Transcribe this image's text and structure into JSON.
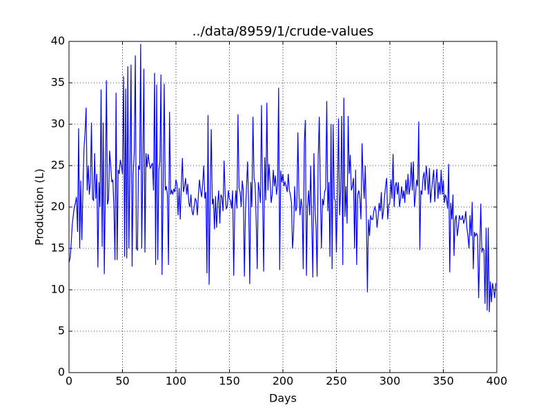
{
  "chart_data": {
    "type": "line",
    "title": "../data/8959/1/crude-values",
    "xlabel": "Days",
    "ylabel": "Production (L)",
    "color": "#0000ff",
    "grid": true,
    "xlim": [
      0,
      400
    ],
    "xticks": [
      0,
      50,
      100,
      150,
      200,
      250,
      300,
      350,
      400
    ],
    "ylim": [
      0,
      40
    ],
    "yticks": [
      0,
      5,
      10,
      15,
      20,
      25,
      30,
      35,
      40
    ],
    "x": [
      0,
      1,
      2,
      3,
      4,
      5,
      6,
      7,
      8,
      9,
      10,
      11,
      12,
      13,
      14,
      15,
      16,
      17,
      18,
      19,
      20,
      21,
      22,
      23,
      24,
      25,
      26,
      27,
      28,
      29,
      30,
      31,
      32,
      33,
      34,
      35,
      36,
      37,
      38,
      39,
      40,
      41,
      42,
      43,
      44,
      45,
      46,
      47,
      48,
      49,
      50,
      51,
      52,
      53,
      54,
      55,
      56,
      57,
      58,
      59,
      60,
      61,
      62,
      63,
      64,
      65,
      66,
      67,
      68,
      69,
      70,
      71,
      72,
      73,
      74,
      75,
      76,
      77,
      78,
      79,
      80,
      81,
      82,
      83,
      84,
      85,
      86,
      87,
      88,
      89,
      90,
      91,
      92,
      93,
      94,
      95,
      96,
      97,
      98,
      99,
      100,
      101,
      102,
      103,
      104,
      105,
      106,
      107,
      108,
      109,
      110,
      111,
      112,
      113,
      114,
      115,
      116,
      117,
      118,
      119,
      120,
      121,
      122,
      123,
      124,
      125,
      126,
      127,
      128,
      129,
      130,
      131,
      132,
      133,
      134,
      135,
      136,
      137,
      138,
      139,
      140,
      141,
      142,
      143,
      144,
      145,
      146,
      147,
      148,
      149,
      150,
      151,
      152,
      153,
      154,
      155,
      156,
      157,
      158,
      159,
      160,
      161,
      162,
      163,
      164,
      165,
      166,
      167,
      168,
      169,
      170,
      171,
      172,
      173,
      174,
      175,
      176,
      177,
      178,
      179,
      180,
      181,
      182,
      183,
      184,
      185,
      186,
      187,
      188,
      189,
      190,
      191,
      192,
      193,
      194,
      195,
      196,
      197,
      198,
      199,
      200,
      201,
      202,
      203,
      204,
      205,
      206,
      207,
      208,
      209,
      210,
      211,
      212,
      213,
      214,
      215,
      216,
      217,
      218,
      219,
      220,
      221,
      222,
      223,
      224,
      225,
      226,
      227,
      228,
      229,
      230,
      231,
      232,
      233,
      234,
      235,
      236,
      237,
      238,
      239,
      240,
      241,
      242,
      243,
      244,
      245,
      246,
      247,
      248,
      249,
      250,
      251,
      252,
      253,
      254,
      255,
      256,
      257,
      258,
      259,
      260,
      261,
      262,
      263,
      264,
      265,
      266,
      267,
      268,
      269,
      270,
      271,
      272,
      273,
      274,
      275,
      276,
      277,
      278,
      279,
      280,
      281,
      282,
      283,
      284,
      285,
      286,
      287,
      288,
      289,
      290,
      291,
      292,
      293,
      294,
      295,
      296,
      297,
      298,
      299,
      300,
      301,
      302,
      303,
      304,
      305,
      306,
      307,
      308,
      309,
      310,
      311,
      312,
      313,
      314,
      315,
      316,
      317,
      318,
      319,
      320,
      321,
      322,
      323,
      324,
      325,
      326,
      327,
      328,
      329,
      330,
      331,
      332,
      333,
      334,
      335,
      336,
      337,
      338,
      339,
      340,
      341,
      342,
      343,
      344,
      345,
      346,
      347,
      348,
      349,
      350,
      351,
      352,
      353,
      354,
      355,
      356,
      357,
      358,
      359,
      360,
      361,
      362,
      363,
      364,
      365,
      366,
      367,
      368,
      369,
      370,
      371,
      372,
      373,
      374,
      375,
      376,
      377,
      378,
      379,
      380,
      381,
      382,
      383,
      384,
      385,
      386,
      387,
      388,
      389,
      390,
      391,
      392,
      393,
      394,
      395,
      396,
      397,
      398,
      399
    ],
    "values": [
      13.3,
      13.8,
      15.5,
      17.8,
      19,
      20,
      20.5,
      21.2,
      17,
      29.5,
      15,
      23.2,
      16,
      22,
      27,
      29,
      32,
      22,
      25,
      21.5,
      23,
      30.2,
      21,
      20.8,
      26.5,
      21,
      24,
      12.7,
      23,
      20,
      34.2,
      15.2,
      30.2,
      11.9,
      22,
      35.3,
      20.3,
      21,
      26.8,
      25,
      23,
      23.3,
      20,
      13.6,
      33.8,
      13.6,
      24.5,
      24,
      25.7,
      25,
      24,
      35.8,
      14,
      34.3,
      13.8,
      37,
      15,
      25,
      37.2,
      12.8,
      24,
      26.5,
      38.3,
      15,
      14.8,
      25,
      24.5,
      39.7,
      15,
      25,
      36.7,
      14.5,
      26.5,
      24.8,
      26.4,
      25.3,
      24.7,
      25,
      25.3,
      22,
      36.2,
      13,
      34.8,
      13.6,
      24.5,
      25.5,
      36,
      11.8,
      22,
      34.9,
      22,
      22.5,
      21.5,
      13,
      31.5,
      21.5,
      22,
      21.5,
      22.2,
      21.8,
      23.3,
      22.7,
      19,
      22.3,
      18.5,
      22.5,
      25.9,
      21.8,
      22.5,
      23.5,
      21.5,
      22.8,
      20.5,
      20,
      21.5,
      19.5,
      19,
      20,
      21,
      20.8,
      19,
      21.5,
      23.3,
      22,
      21.2,
      22.8,
      25,
      21,
      21.8,
      12,
      31.1,
      10.6,
      21,
      29.4,
      20.3,
      21,
      17.3,
      21.3,
      17.5,
      20.5,
      22,
      18,
      21.5,
      21.2,
      19.5,
      25.6,
      21.5,
      19.8,
      20,
      22,
      21,
      20.8,
      19.8,
      22,
      11.7,
      20,
      22,
      19.8,
      31.2,
      22.3,
      21.8,
      20,
      23.2,
      22,
      11.6,
      19.5,
      22.5,
      25.5,
      20,
      10.7,
      23,
      20,
      30.9,
      23.5,
      22.8,
      18.5,
      12.5,
      23,
      22,
      20.5,
      32.3,
      21.5,
      12.2,
      26,
      20.8,
      32.6,
      22,
      25.2,
      23.2,
      20.5,
      21.5,
      24.5,
      22.5,
      23.8,
      21.5,
      22.6,
      34.4,
      12.4,
      24.4,
      23,
      24,
      22.5,
      23,
      22.5,
      21.8,
      24,
      22,
      21.5,
      20.5,
      15,
      17,
      22.5,
      19.5,
      20,
      29,
      21.5,
      19,
      21,
      20,
      12.5,
      27.8,
      30.5,
      11.7,
      20,
      22,
      19,
      25,
      18,
      11.5,
      26.5,
      20,
      17.5,
      11.6,
      26,
      30.9,
      22,
      15,
      21,
      20.2,
      21.8,
      22.2,
      32.8,
      19.5,
      23,
      14,
      30,
      12.5,
      30,
      21,
      20.8,
      14.5,
      21.5,
      30.7,
      19,
      22,
      31,
      13,
      33.2,
      18.8,
      22.5,
      18,
      31,
      24,
      26.3,
      22,
      22.5,
      23.5,
      15,
      24.5,
      13,
      21.5,
      22,
      21,
      18.5,
      27.7,
      23.5,
      21,
      25,
      19,
      9.7,
      18.5,
      16.5,
      19,
      18.5,
      18.5,
      19.5,
      20,
      19.5,
      17.5,
      18.8,
      20.5,
      19.5,
      21.8,
      18.5,
      19.5,
      21.2,
      22.5,
      23.5,
      18.5,
      20.3,
      20.5,
      23.3,
      21,
      26.4,
      20,
      22.5,
      23,
      21.5,
      23,
      20,
      21,
      22.5,
      21,
      22,
      20.5,
      23.3,
      21.5,
      24,
      21.5,
      22.5,
      25.4,
      22,
      25.5,
      20,
      21.5,
      23.3,
      22.5,
      30.3,
      14.8,
      22,
      21.5,
      23.5,
      24.2,
      22,
      25,
      23.5,
      21.5,
      24.7,
      20.5,
      22,
      23.3,
      24.5,
      20.6,
      23,
      24.6,
      21,
      23,
      21.5,
      24.5,
      21.5,
      23.2,
      20.5,
      21.5,
      21,
      19.8,
      25.2,
      12.1,
      20.5,
      18.5,
      21.5,
      14.1,
      18.5,
      19,
      16.5,
      17.5,
      19,
      18.5,
      18.5,
      19,
      18,
      18.5,
      19.5,
      17.5,
      16.5,
      15,
      19,
      16.5,
      20.6,
      12.5,
      17,
      16.5,
      16.8,
      16.5,
      9,
      14.5,
      20.4,
      14.5,
      15,
      14.8,
      8.3,
      17.5,
      7.5,
      17.5,
      7.3,
      11,
      8.5,
      10.8,
      10,
      9,
      10.8
    ]
  }
}
